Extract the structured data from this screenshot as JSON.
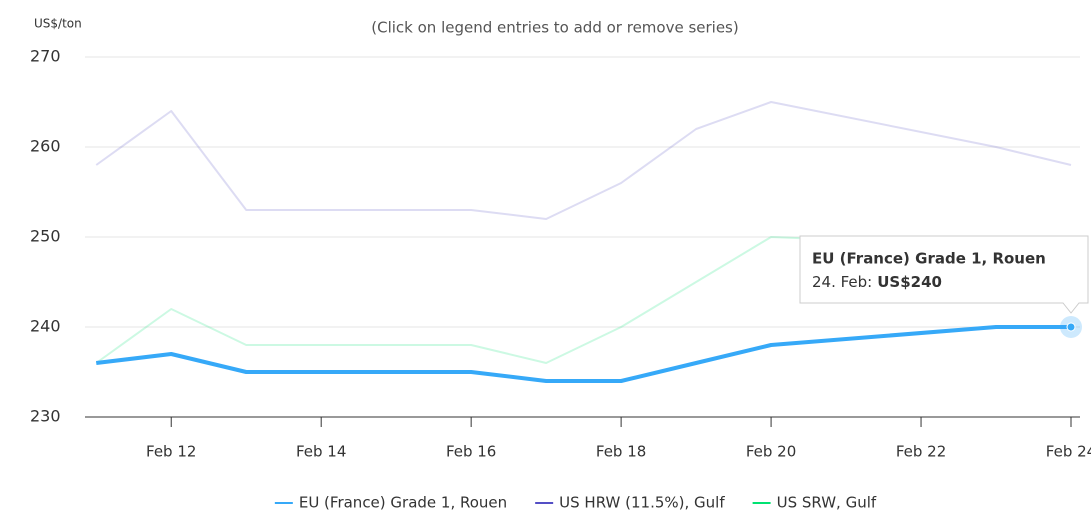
{
  "chart_data": {
    "type": "line",
    "subtitle": "(Click on legend entries to add or remove series)",
    "y_label": "US$/ton",
    "x": [
      11,
      12,
      13,
      16,
      17,
      18,
      19,
      20,
      23,
      24
    ],
    "xlim": [
      10.85,
      24.12
    ],
    "xticks": [
      {
        "value": 12,
        "label": "Feb 12"
      },
      {
        "value": 14,
        "label": "Feb 14"
      },
      {
        "value": 16,
        "label": "Feb 16"
      },
      {
        "value": 18,
        "label": "Feb 18"
      },
      {
        "value": 20,
        "label": "Feb 20"
      },
      {
        "value": 22,
        "label": "Feb 22"
      },
      {
        "value": 24,
        "label": "Feb 24"
      }
    ],
    "ylim": [
      230,
      270
    ],
    "yticks": [
      230,
      240,
      250,
      260,
      270
    ],
    "grid": true,
    "legend": "bottom",
    "series": [
      {
        "name": "EU (France) Grade 1, Rouen",
        "color": "#36a9f8",
        "values": [
          236,
          237,
          235,
          235,
          234,
          234,
          236,
          238,
          240,
          240
        ]
      },
      {
        "name": "US HRW (11.5%), Gulf",
        "color": "#544fc5",
        "values": [
          258,
          264,
          253,
          253,
          252,
          256,
          262,
          265,
          260,
          258
        ]
      },
      {
        "name": "US SRW, Gulf",
        "color": "#00e272",
        "values": [
          236,
          242,
          238,
          238,
          236,
          240,
          245,
          250,
          249,
          248
        ]
      }
    ],
    "tooltip": {
      "x_label": "24. Feb:",
      "value_label": "US$240"
    }
  }
}
